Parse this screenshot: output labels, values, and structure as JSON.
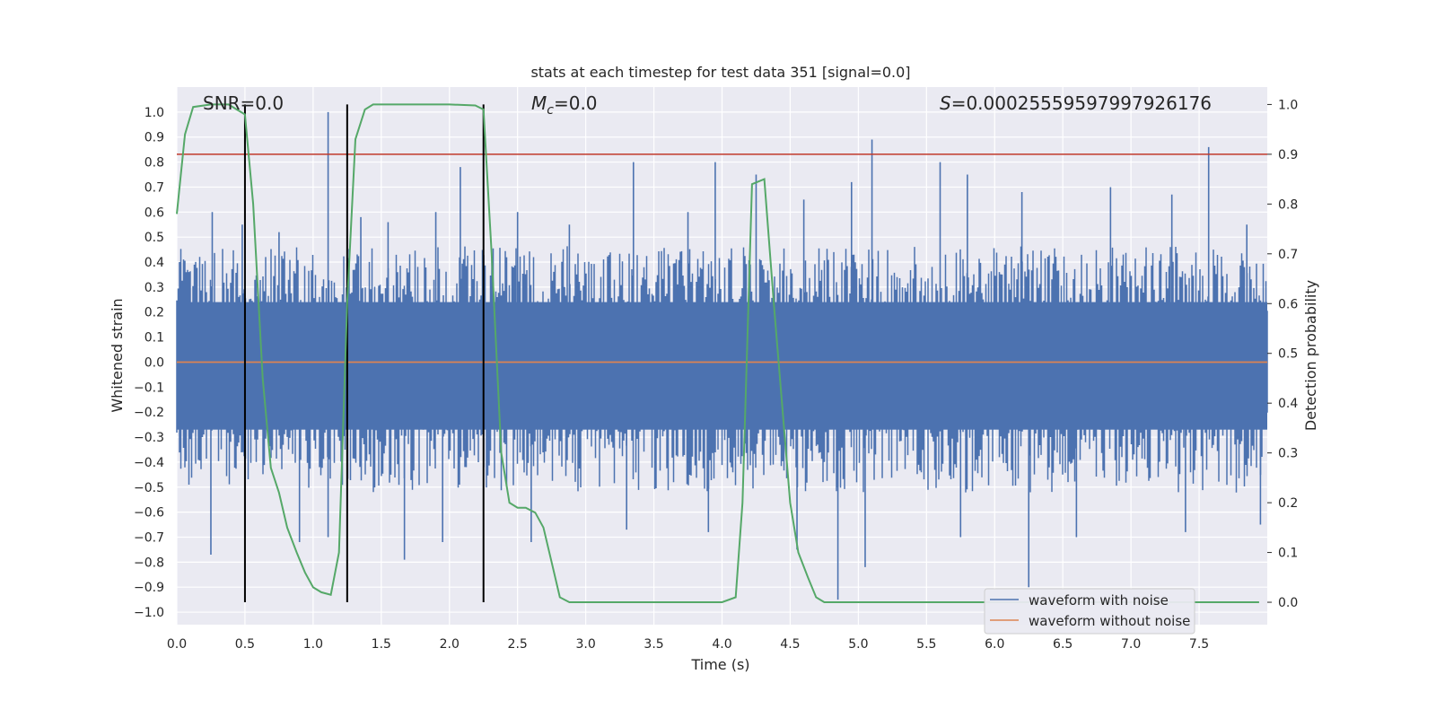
{
  "chart_data": {
    "type": "line",
    "title": "stats at each timestep for test data 351 [signal=0.0]",
    "xlabel": "Time (s)",
    "ylabel": "Whitened strain",
    "y2label": "Detection probability",
    "xlim": [
      0.0,
      8.0
    ],
    "ylim": [
      -1.05,
      1.1
    ],
    "y2lim": [
      -0.045,
      1.035
    ],
    "xticks": [
      "0.0",
      "0.5",
      "1.0",
      "1.5",
      "2.0",
      "2.5",
      "3.0",
      "3.5",
      "4.0",
      "4.5",
      "5.0",
      "5.5",
      "6.0",
      "6.5",
      "7.0",
      "7.5"
    ],
    "yticks": [
      "1.0",
      "0.9",
      "0.8",
      "0.7",
      "0.6",
      "0.5",
      "0.4",
      "0.3",
      "0.2",
      "0.1",
      "0.0",
      "−0.1",
      "−0.2",
      "−0.3",
      "−0.4",
      "−0.5",
      "−0.6",
      "−0.7",
      "−0.8",
      "−0.9",
      "−1.0"
    ],
    "y2ticks": [
      "1.0",
      "0.9",
      "0.8",
      "0.7",
      "0.6",
      "0.5",
      "0.4",
      "0.3",
      "0.2",
      "0.1",
      "0.0"
    ],
    "annotations": {
      "snr": "SNR=0.0",
      "mc": "=0.0",
      "s": "=0.00025559597997926176"
    },
    "threshold": {
      "y2": 0.9,
      "color": "#c0392b"
    },
    "vlines": [
      0.5,
      1.25,
      2.25
    ],
    "legend": {
      "position": "lower-right",
      "entries": [
        "waveform with noise",
        "waveform without noise"
      ]
    },
    "series": [
      {
        "name": "waveform with noise",
        "color": "#4c72b0",
        "axis": "left",
        "band": {
          "hi": 0.32,
          "lo": -0.36
        },
        "spikes_pos": [
          [
            0.26,
            0.6
          ],
          [
            0.48,
            0.55
          ],
          [
            0.75,
            0.52
          ],
          [
            1.11,
            1.0
          ],
          [
            1.35,
            0.58
          ],
          [
            1.55,
            0.56
          ],
          [
            1.9,
            0.6
          ],
          [
            2.08,
            0.78
          ],
          [
            2.5,
            0.6
          ],
          [
            2.88,
            0.55
          ],
          [
            3.35,
            0.8
          ],
          [
            3.75,
            0.6
          ],
          [
            3.95,
            0.8
          ],
          [
            4.25,
            0.75
          ],
          [
            4.6,
            0.65
          ],
          [
            4.95,
            0.72
          ],
          [
            5.1,
            0.89
          ],
          [
            5.6,
            0.8
          ],
          [
            5.8,
            0.75
          ],
          [
            6.2,
            0.68
          ],
          [
            6.85,
            0.7
          ],
          [
            7.3,
            0.67
          ],
          [
            7.57,
            0.86
          ],
          [
            7.85,
            0.55
          ]
        ],
        "spikes_neg": [
          [
            0.25,
            -0.77
          ],
          [
            0.5,
            -0.7
          ],
          [
            0.9,
            -0.72
          ],
          [
            1.11,
            -0.7
          ],
          [
            1.67,
            -0.79
          ],
          [
            1.95,
            -0.72
          ],
          [
            2.6,
            -0.72
          ],
          [
            3.3,
            -0.67
          ],
          [
            3.9,
            -0.68
          ],
          [
            4.55,
            -0.75
          ],
          [
            4.85,
            -0.95
          ],
          [
            5.05,
            -0.82
          ],
          [
            5.75,
            -0.7
          ],
          [
            6.25,
            -0.9
          ],
          [
            6.6,
            -0.7
          ],
          [
            7.4,
            -0.68
          ],
          [
            7.95,
            -0.65
          ]
        ]
      },
      {
        "name": "waveform without noise",
        "color": "#dd8452",
        "axis": "left",
        "x": [
          0.0,
          8.0
        ],
        "y": [
          0.0,
          0.0
        ]
      },
      {
        "name": "detection probability",
        "color": "#55a868",
        "axis": "right",
        "x": [
          0.0,
          0.06,
          0.12,
          0.25,
          0.38,
          0.44,
          0.5,
          0.56,
          0.63,
          0.69,
          0.75,
          0.81,
          0.88,
          0.94,
          1.0,
          1.06,
          1.13,
          1.19,
          1.25,
          1.31,
          1.38,
          1.44,
          1.5,
          1.75,
          2.0,
          2.19,
          2.25,
          2.31,
          2.38,
          2.44,
          2.5,
          2.56,
          2.63,
          2.69,
          2.75,
          2.81,
          2.88,
          2.94,
          3.5,
          4.0,
          4.1,
          4.15,
          4.22,
          4.31,
          4.38,
          4.44,
          4.5,
          4.56,
          4.63,
          4.69,
          4.75,
          4.81,
          5.5,
          6.0,
          7.0,
          7.94
        ],
        "y": [
          0.78,
          0.94,
          0.995,
          1.0,
          1.0,
          0.99,
          0.98,
          0.8,
          0.45,
          0.27,
          0.22,
          0.15,
          0.1,
          0.06,
          0.03,
          0.02,
          0.015,
          0.1,
          0.6,
          0.93,
          0.99,
          1.0,
          1.0,
          1.0,
          1.0,
          0.998,
          0.99,
          0.7,
          0.3,
          0.2,
          0.19,
          0.19,
          0.18,
          0.15,
          0.08,
          0.01,
          0.0,
          0.0,
          0.0,
          0.0,
          0.01,
          0.2,
          0.84,
          0.85,
          0.6,
          0.4,
          0.2,
          0.1,
          0.05,
          0.01,
          0.0,
          0.0,
          0.0,
          0.0,
          0.0,
          0.0
        ]
      }
    ]
  }
}
